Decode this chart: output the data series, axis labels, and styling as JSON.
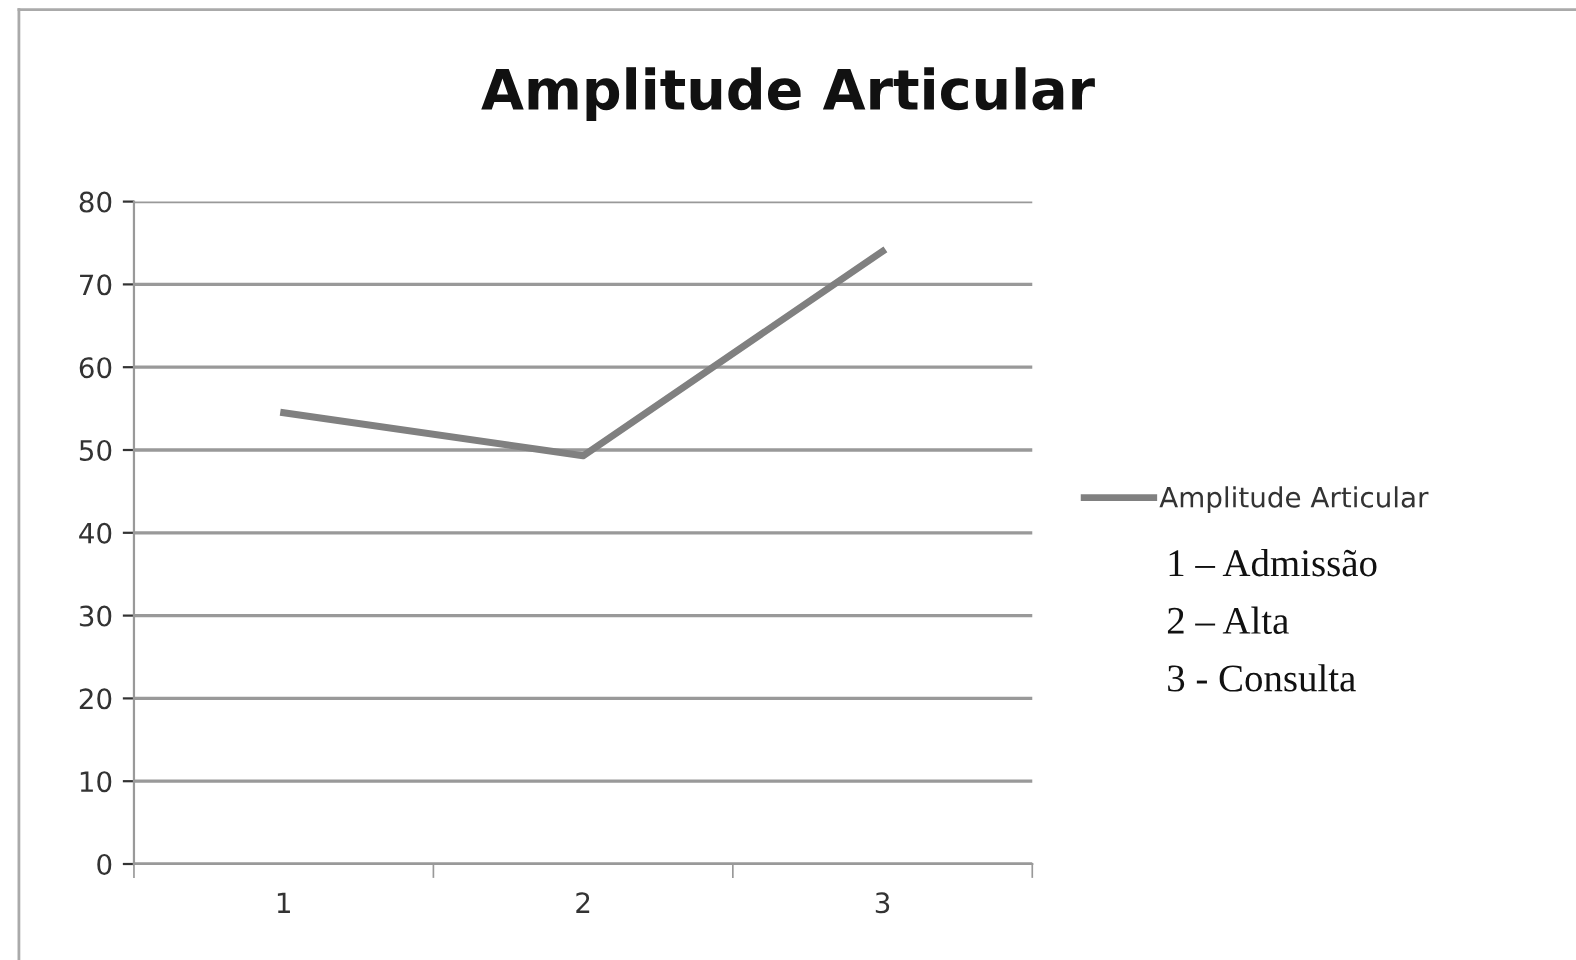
{
  "chart_data": {
    "type": "line",
    "title": "Amplitude Articular",
    "categories": [
      "1",
      "2",
      "3"
    ],
    "series": [
      {
        "name": "Amplitude Articular",
        "color": "#808080",
        "values": [
          54.5,
          49.3,
          74
        ]
      }
    ],
    "ylim": [
      0,
      80
    ],
    "yticks": [
      0,
      10,
      20,
      30,
      40,
      50,
      60,
      70,
      80
    ],
    "grid": "y",
    "legend": "right",
    "marker": "none",
    "line_style": "solid",
    "annotations": [
      "1 – Admissão",
      "2 – Alta",
      "3 - Consulta"
    ]
  }
}
